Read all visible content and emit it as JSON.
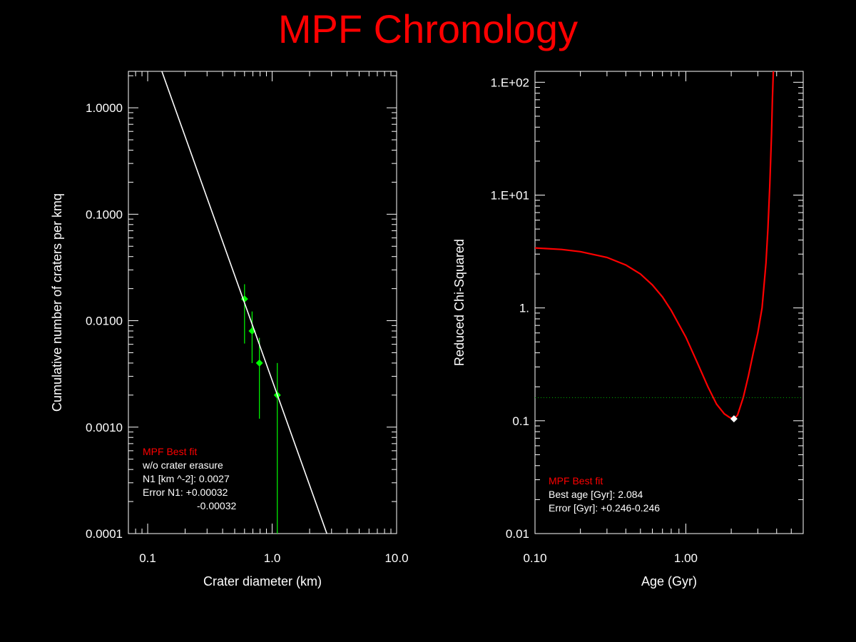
{
  "title": "MPF Chronology",
  "colors": {
    "background": "#000000",
    "title": "#ff0000",
    "axes": "#ffffff",
    "fit_line": "#ffffff",
    "data_points": "#00ff00",
    "chi_curve": "#ff0000",
    "best_marker": "#ffffff",
    "threshold_line": "#00aa00",
    "annotation_highlight": "#ff0000",
    "annotation_text": "#ffffff"
  },
  "chart_data": [
    {
      "type": "scatter",
      "xlabel": "Crater diameter (km)",
      "ylabel": "Cumulative number of craters per kmq",
      "xscale": "log",
      "yscale": "log",
      "xlim": [
        0.07,
        10.0
      ],
      "ylim": [
        0.0001,
        2.2
      ],
      "xticks": [
        0.1,
        1.0,
        10.0
      ],
      "xtick_labels": [
        "0.1",
        "1.0",
        "10.0"
      ],
      "yticks": [
        0.0001,
        0.001,
        0.01,
        0.1,
        1.0
      ],
      "ytick_labels": [
        "0.0001",
        "0.0010",
        "0.0100",
        "0.1000",
        "1.0000"
      ],
      "series": [
        {
          "type": "scatter",
          "x": [
            0.6,
            0.69,
            0.79,
            1.1
          ],
          "y": [
            0.016,
            0.008,
            0.004,
            0.002
          ],
          "y_err_low": [
            0.0061,
            0.004,
            0.0012,
            0.0001
          ],
          "y_err_high": [
            0.022,
            0.0122,
            0.0069,
            0.004
          ]
        },
        {
          "type": "line",
          "x": [
            0.13,
            2.75
          ],
          "y": [
            2.2,
            0.0001
          ]
        }
      ],
      "annotations": [
        {
          "text": "MPF Best fit",
          "highlight": true
        },
        {
          "text": "w/o crater erasure",
          "highlight": false
        },
        {
          "text": "N1 [km ^-2]: 0.0027",
          "highlight": false
        },
        {
          "text": "Error N1: +0.00032",
          "highlight": false
        },
        {
          "text": "-0.00032",
          "highlight": false
        }
      ],
      "grid": false
    },
    {
      "type": "line",
      "xlabel": "Age (Gyr)",
      "ylabel": "Reduced Chi-Squared",
      "xscale": "log",
      "yscale": "log",
      "xlim": [
        0.1,
        6.0
      ],
      "ylim": [
        0.01,
        125
      ],
      "xticks": [
        0.1,
        1.0
      ],
      "xtick_labels": [
        "0.10",
        "1.00"
      ],
      "yticks": [
        0.01,
        0.1,
        1,
        10,
        100
      ],
      "ytick_labels": [
        "0.01",
        "0.1",
        "1.",
        "1.E+01",
        "1.E+02"
      ],
      "series": [
        {
          "type": "line",
          "x": [
            0.1,
            0.15,
            0.2,
            0.3,
            0.4,
            0.5,
            0.6,
            0.7,
            0.8,
            1.0,
            1.2,
            1.4,
            1.6,
            1.8,
            1.95,
            2.084,
            2.2,
            2.4,
            2.6,
            2.8,
            3.0,
            3.2,
            3.4,
            3.5,
            3.6,
            3.7,
            3.75,
            3.8
          ],
          "y": [
            3.4,
            3.3,
            3.15,
            2.8,
            2.4,
            2.0,
            1.6,
            1.25,
            0.95,
            0.55,
            0.32,
            0.2,
            0.14,
            0.115,
            0.107,
            0.104,
            0.112,
            0.16,
            0.25,
            0.4,
            0.6,
            1.0,
            2.5,
            5.0,
            12.0,
            35.0,
            70.0,
            125.0
          ]
        },
        {
          "type": "threshold",
          "y": 0.16
        },
        {
          "type": "marker",
          "x": 2.084,
          "y": 0.104
        }
      ],
      "annotations": [
        {
          "text": "MPF Best fit",
          "highlight": true
        },
        {
          "text": "Best age [Gyr]: 2.084",
          "highlight": false
        },
        {
          "text": "Error [Gyr]: +0.246-0.246",
          "highlight": false
        }
      ],
      "grid": false
    }
  ]
}
